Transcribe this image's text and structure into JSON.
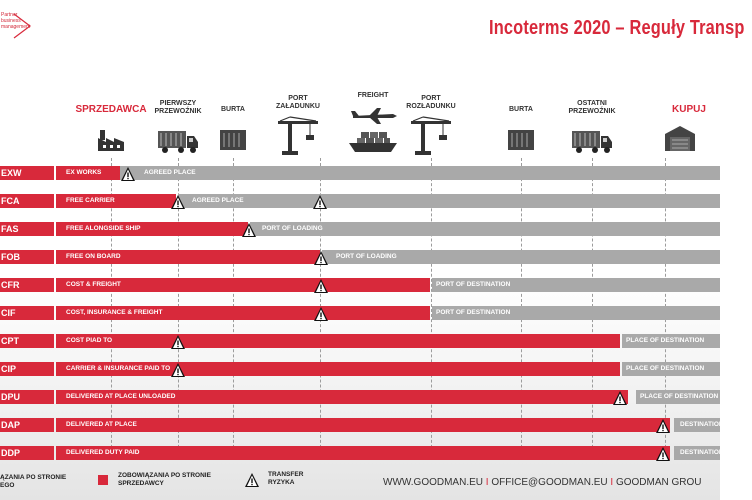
{
  "header": {
    "title": "Incoterms 2020 – Reguły Transp",
    "logo_text": "Partner\nbusiness\nmanagement"
  },
  "columns": [
    {
      "key": "seller",
      "label": "SPRZEDAWCA",
      "icon": "factory-icon",
      "accent": true
    },
    {
      "key": "first_carrier",
      "label": "PIERWSZY\nPRZEWOŹNIK",
      "icon": "truck-icon",
      "accent": false
    },
    {
      "key": "side_origin",
      "label": "BURTA",
      "icon": "container-icon",
      "accent": false
    },
    {
      "key": "port_loading",
      "label": "PORT\nZAŁADUNKU",
      "icon": "crane-icon",
      "accent": false
    },
    {
      "key": "freight",
      "label": "FREIGHT",
      "icon": "plane-ship-icon",
      "accent": false
    },
    {
      "key": "port_unloading",
      "label": "PORT\nROZŁADUNKU",
      "icon": "crane-icon",
      "accent": false
    },
    {
      "key": "side_dest",
      "label": "BURTA",
      "icon": "container-icon",
      "accent": false
    },
    {
      "key": "last_carrier",
      "label": "OSTATNI\nPRZEWOŹNIK",
      "icon": "truck-icon",
      "accent": false
    },
    {
      "key": "buyer",
      "label": "KUPUJ",
      "icon": "warehouse-icon",
      "accent": true
    }
  ],
  "rows": [
    {
      "code": "EXW",
      "red_label": "EX WORKS",
      "gray_label": "AGREED PLACE"
    },
    {
      "code": "FCA",
      "red_label": "FREE CARRIER",
      "gray_label": "AGREED PLACE"
    },
    {
      "code": "FAS",
      "red_label": "FREE ALONGSIDE SHIP",
      "gray_label": "PORT OF LOADING"
    },
    {
      "code": "FOB",
      "red_label": "FREE ON BOARD",
      "gray_label": "PORT OF LOADING"
    },
    {
      "code": "CFR",
      "red_label": "COST & FREIGHT",
      "gray_label": "PORT OF DESTINATION"
    },
    {
      "code": "CIF",
      "red_label": "COST, INSURANCE & FREIGHT",
      "gray_label": "PORT OF DESTINATION"
    },
    {
      "code": "CPT",
      "red_label": "COST PIAD TO",
      "gray_label": "PLACE OF DESTINATION"
    },
    {
      "code": "CIP",
      "red_label": "CARRIER & INSURANCE PAID TO",
      "gray_label": "PLACE OF DESTINATION"
    },
    {
      "code": "DPU",
      "red_label": "DELIVERED AT PLACE UNLOADED",
      "gray_label": "PLACE OF DESTINATION"
    },
    {
      "code": "DAP",
      "red_label": "DELIVERED AT PLACE",
      "gray_label": "DESTINATION"
    },
    {
      "code": "DDP",
      "red_label": "DELIVERED DUTY PAID",
      "gray_label": "DESTINATION"
    }
  ],
  "legend": {
    "buyer_obligations": "ĄZANIA PO STRONIE\nEGO",
    "seller_obligations": "ZOBOWIĄZANIA PO STRONIE\nSPRZEDAWCY",
    "risk_transfer": "TRANSFER\nRYZYKA"
  },
  "footer": {
    "website": "WWW.GOODMAN.EU",
    "email": "OFFICE@GOODMAN.EU",
    "group": "GOODMAN GROU",
    "separator": "I"
  },
  "colors": {
    "accent": "#d8293b",
    "gray": "#a9a9a9"
  }
}
